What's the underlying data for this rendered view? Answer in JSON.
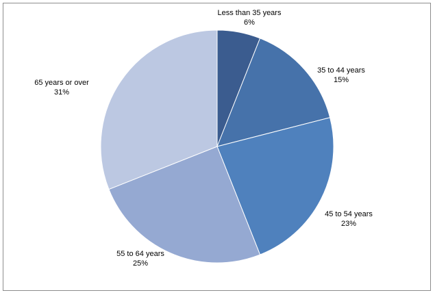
{
  "chart_data": {
    "type": "pie",
    "title": "",
    "categories": [
      "Less than 35 years",
      "35 to 44 years",
      "45 to 54 years",
      "55 to 64 years",
      "65 years or over"
    ],
    "values": [
      6,
      15,
      23,
      25,
      31
    ],
    "value_labels": [
      "6%",
      "15%",
      "23%",
      "25%",
      "31%"
    ],
    "colors": [
      "#3b5c8f",
      "#4672aa",
      "#4f81bd",
      "#95a9d2",
      "#bcc8e2"
    ],
    "start_angle_deg": 0,
    "direction": "clockwise",
    "legend": "none"
  }
}
